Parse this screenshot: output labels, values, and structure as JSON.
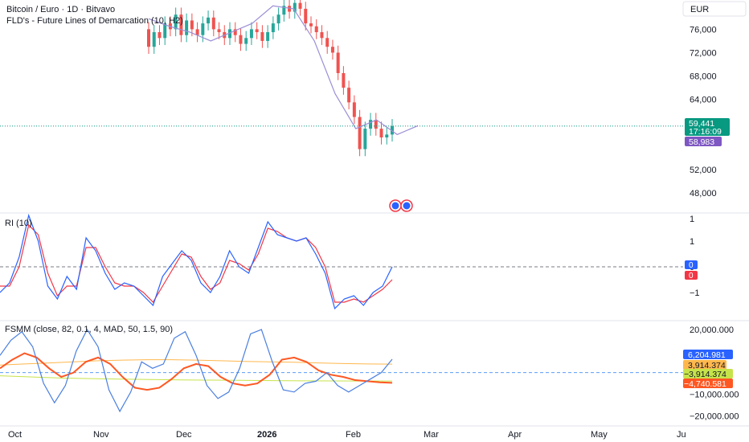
{
  "header": {
    "symbol_line": "Bitcoin / Euro · 1D · Bitvavo",
    "indicator_line": "FLD's - Future Lines of Demarcation (10, H2)"
  },
  "currency_button": "EUR",
  "colors": {
    "up": "#26a69a",
    "down": "#ef5350",
    "fld": "#9c8fd6",
    "price_label": "#089981",
    "fld_label": "#7e57c2",
    "osc_blue": "#2962ff",
    "osc_red": "#f23645",
    "fsmm_line": "#4a7fe0",
    "fsmm_red": "#ff5722",
    "fsmm_orange": "#ffb74d",
    "fsmm_green": "#c6e34a"
  },
  "events_badge": {
    "icon": "globe-icon",
    "count": 2
  },
  "price_badges": {
    "last": "59,441",
    "countdown": "17:16:09",
    "fld": "58,983"
  },
  "rsi_pane": {
    "title": "RI (10)",
    "ticks": [
      "1",
      "1",
      "0",
      "−1"
    ],
    "badge_blue": "0",
    "badge_red": "0"
  },
  "fsmm_pane": {
    "title": "FSMM (close, 82, 0.1, 4, MAD, 50, 1.5, 90)",
    "ticks": [
      "20,000.000",
      "−10,000.000",
      "−20,000.000"
    ],
    "badges": [
      {
        "value": "6,204.981",
        "color": "#2962ff",
        "text": "#ffffff"
      },
      {
        "value": "3,914.374",
        "color": "#ffb74d",
        "text": "#131722"
      },
      {
        "value": "−3,914.374",
        "color": "#c6e34a",
        "text": "#131722"
      },
      {
        "value": "−4,740.581",
        "color": "#ff5722",
        "text": "#ffffff"
      }
    ]
  },
  "time_axis": [
    "Oct",
    "Nov",
    "Dec",
    "2026",
    "Feb",
    "Mar",
    "Apr",
    "May",
    "Ju"
  ],
  "chart_data": [
    {
      "type": "candlestick",
      "title": "Bitcoin / Euro · 1D · Bitvavo",
      "y_axis_ticks": [
        "76,000",
        "72,000",
        "68,000",
        "64,000",
        "52,000",
        "48,000"
      ],
      "ylim": [
        45000,
        81000
      ],
      "last_price": 59441,
      "fld_value": 58983,
      "series": [
        {
          "name": "FLD's - Future Lines of Demarcation (10, H2)",
          "x": [
            "Nov 24",
            "Dec 1",
            "Dec 8",
            "Dec 15",
            "Dec 22",
            "Dec 29",
            "Jan 5",
            "Jan 12",
            "Jan 19",
            "Jan 26",
            "Feb 2",
            "Feb 9",
            "Feb 16",
            "Feb 23"
          ],
          "values": [
            77800,
            76500,
            75500,
            74000,
            75500,
            77000,
            80000,
            79500,
            74000,
            65000,
            59000,
            60500,
            58000,
            59500
          ]
        }
      ],
      "candles": [
        {
          "date": "Nov 18",
          "open": 76000,
          "close": 73000
        },
        {
          "date": "Nov 20",
          "open": 73000,
          "close": 75500
        },
        {
          "date": "Nov 22",
          "open": 75500,
          "close": 74500
        },
        {
          "date": "Nov 24",
          "open": 74500,
          "close": 77000
        },
        {
          "date": "Nov 26",
          "open": 77000,
          "close": 76000
        },
        {
          "date": "Nov 28",
          "open": 76000,
          "close": 78500
        },
        {
          "date": "Dec 1",
          "open": 78500,
          "close": 75000
        },
        {
          "date": "Dec 3",
          "open": 75000,
          "close": 77500
        },
        {
          "date": "Dec 5",
          "open": 77500,
          "close": 76000
        },
        {
          "date": "Dec 7",
          "open": 76000,
          "close": 75000
        },
        {
          "date": "Dec 9",
          "open": 75000,
          "close": 77000
        },
        {
          "date": "Dec 11",
          "open": 77000,
          "close": 78000
        },
        {
          "date": "Dec 13",
          "open": 78000,
          "close": 76000
        },
        {
          "date": "Dec 15",
          "open": 76000,
          "close": 75500
        },
        {
          "date": "Dec 17",
          "open": 75500,
          "close": 74500
        },
        {
          "date": "Dec 19",
          "open": 74500,
          "close": 76000
        },
        {
          "date": "Dec 21",
          "open": 76000,
          "close": 75000
        },
        {
          "date": "Dec 23",
          "open": 75000,
          "close": 73500
        },
        {
          "date": "Dec 25",
          "open": 73500,
          "close": 74500
        },
        {
          "date": "Dec 27",
          "open": 74500,
          "close": 76000
        },
        {
          "date": "Dec 29",
          "open": 76000,
          "close": 75500
        },
        {
          "date": "Dec 31",
          "open": 75500,
          "close": 74000
        },
        {
          "date": "Jan 2",
          "open": 74000,
          "close": 75500
        },
        {
          "date": "Jan 4",
          "open": 75500,
          "close": 77000
        },
        {
          "date": "Jan 6",
          "open": 77000,
          "close": 78500
        },
        {
          "date": "Jan 8",
          "open": 78500,
          "close": 80000
        },
        {
          "date": "Jan 10",
          "open": 80000,
          "close": 79000
        },
        {
          "date": "Jan 12",
          "open": 79000,
          "close": 80500
        },
        {
          "date": "Jan 14",
          "open": 80500,
          "close": 79500
        },
        {
          "date": "Jan 16",
          "open": 79500,
          "close": 77000
        },
        {
          "date": "Jan 18",
          "open": 77000,
          "close": 76500
        },
        {
          "date": "Jan 20",
          "open": 76500,
          "close": 75500
        },
        {
          "date": "Jan 22",
          "open": 75500,
          "close": 74500
        },
        {
          "date": "Jan 24",
          "open": 74500,
          "close": 73000
        },
        {
          "date": "Jan 26",
          "open": 73000,
          "close": 72000
        },
        {
          "date": "Jan 28",
          "open": 72000,
          "close": 68500
        },
        {
          "date": "Jan 30",
          "open": 68500,
          "close": 66000
        },
        {
          "date": "Feb 1",
          "open": 66000,
          "close": 63500
        },
        {
          "date": "Feb 3",
          "open": 63500,
          "close": 61000
        },
        {
          "date": "Feb 5",
          "open": 61000,
          "close": 55500
        },
        {
          "date": "Feb 7",
          "open": 55500,
          "close": 59000
        },
        {
          "date": "Feb 9",
          "open": 59000,
          "close": 60500
        },
        {
          "date": "Feb 11",
          "open": 60500,
          "close": 59000
        },
        {
          "date": "Feb 13",
          "open": 59000,
          "close": 57500
        },
        {
          "date": "Feb 15",
          "open": 57500,
          "close": 58000
        },
        {
          "date": "Feb 17",
          "open": 58000,
          "close": 59441
        }
      ]
    },
    {
      "type": "line",
      "title": "RI (10)",
      "ylim": [
        -1.6,
        1.6
      ],
      "y_axis_ticks": [
        "1",
        "1",
        "0",
        "−1"
      ],
      "series": [
        {
          "name": "RI (10)",
          "values": [
            -0.8,
            -0.5,
            0.3,
            1.6,
            0.8,
            -0.6,
            -1.0,
            -0.3,
            -0.7,
            0.9,
            0.5,
            -0.2,
            -0.7,
            -0.5,
            -0.6,
            -0.9,
            -1.2,
            -0.3,
            0.1,
            0.5,
            0.2,
            -0.5,
            -0.8,
            -0.3,
            0.5,
            0.0,
            -0.2,
            0.6,
            1.4,
            1.0,
            0.9,
            0.8,
            0.9,
            0.4,
            -0.2,
            -1.3,
            -1.0,
            -0.9,
            -1.2,
            -0.8,
            -0.6,
            0.0
          ]
        },
        {
          "name": "RI (10) signal",
          "values": [
            -0.6,
            -0.6,
            0.0,
            1.3,
            1.0,
            -0.2,
            -0.9,
            -0.6,
            -0.6,
            0.6,
            0.6,
            0.0,
            -0.5,
            -0.6,
            -0.6,
            -0.8,
            -1.1,
            -0.6,
            -0.1,
            0.4,
            0.3,
            -0.3,
            -0.7,
            -0.5,
            0.2,
            0.1,
            -0.1,
            0.4,
            1.2,
            1.1,
            0.9,
            0.8,
            0.9,
            0.6,
            0.0,
            -1.1,
            -1.1,
            -1.0,
            -1.1,
            -0.9,
            -0.7,
            -0.4
          ]
        }
      ]
    },
    {
      "type": "line",
      "title": "FSMM (close, 82, 0.1, 4, MAD, 50, 1.5, 90)",
      "ylim": [
        -24000,
        23000
      ],
      "y_axis_ticks": [
        "20,000.000",
        "−10,000.000",
        "−20,000.000"
      ],
      "series": [
        {
          "name": "FSMM",
          "values": [
            8000,
            15000,
            19000,
            12000,
            -5000,
            -14000,
            -6000,
            10000,
            20000,
            12000,
            -8000,
            -18000,
            -9000,
            5000,
            2000,
            4000,
            16000,
            19000,
            8000,
            -6000,
            -12000,
            -9000,
            2000,
            18000,
            20000,
            5000,
            -8000,
            -9000,
            -5000,
            -4000,
            0,
            -6000,
            -9000,
            -6000,
            -3000,
            0,
            6200
          ]
        },
        {
          "name": "FSMM trend",
          "values": [
            2000,
            6000,
            9000,
            7000,
            2000,
            -2000,
            0,
            5000,
            7000,
            4000,
            -2000,
            -7000,
            -8000,
            -7000,
            -3000,
            2000,
            4000,
            3000,
            -2000,
            -5000,
            -6000,
            -5000,
            -1000,
            6000,
            7000,
            5000,
            1000,
            -1000,
            -2000,
            -3500,
            -4000,
            -4500,
            -4740
          ]
        },
        {
          "name": "upper band",
          "values": [
            3500,
            4000,
            4500,
            5000,
            5500,
            5800,
            6000,
            6000,
            5800,
            5500,
            5200,
            5000,
            4800,
            4500,
            4200,
            4000,
            3914
          ]
        },
        {
          "name": "lower band",
          "values": [
            -1500,
            -2000,
            -2500,
            -2800,
            -3000,
            -3200,
            -3400,
            -3500,
            -3600,
            -3700,
            -3800,
            -3850,
            -3900,
            -3914
          ]
        }
      ]
    }
  ]
}
